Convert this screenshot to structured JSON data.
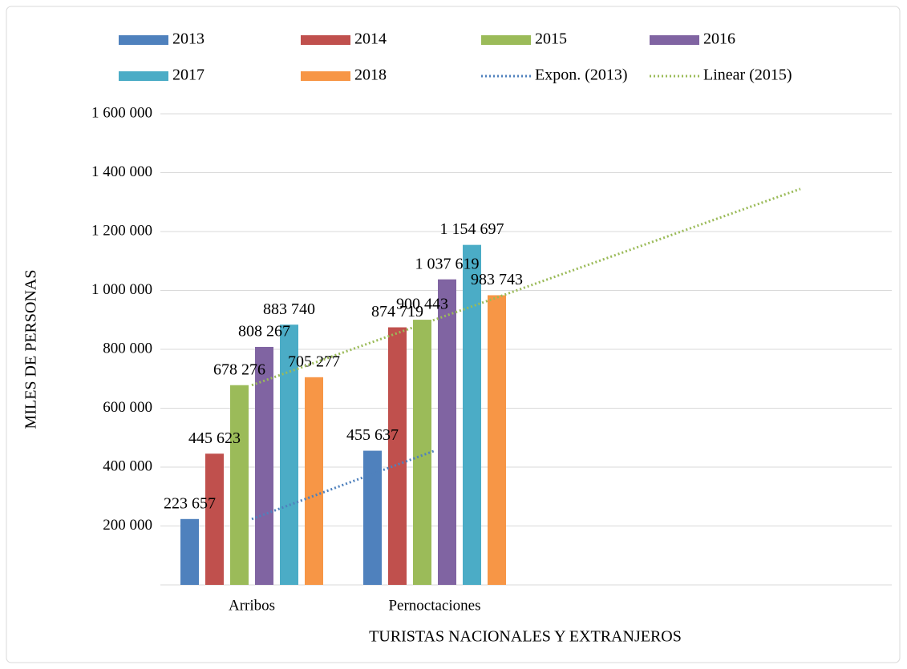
{
  "chart_data": {
    "type": "bar",
    "x_label": "TURISTAS NACIONALES Y EXTRANJEROS",
    "y_label": "MILES DE PERSONAS",
    "categories": [
      "Arribos",
      "Pernoctaciones",
      null,
      null
    ],
    "ylim": [
      0,
      1600000
    ],
    "yticks": [
      {
        "value": 200000,
        "label": "200 000"
      },
      {
        "value": 400000,
        "label": "400 000"
      },
      {
        "value": 600000,
        "label": "600 000"
      },
      {
        "value": 800000,
        "label": "800 000"
      },
      {
        "value": 1000000,
        "label": "1 000 000"
      },
      {
        "value": 1200000,
        "label": "1 200 000"
      },
      {
        "value": 1400000,
        "label": "1 400 000"
      },
      {
        "value": 1600000,
        "label": "1 600 000"
      }
    ],
    "grid": true,
    "legend": "top",
    "series": [
      {
        "name": "2013",
        "color": "#4f81bd",
        "values": [
          223657,
          455637,
          null,
          null
        ],
        "value_labels": [
          "223 657",
          "455 637",
          null,
          null
        ]
      },
      {
        "name": "2014",
        "color": "#c0504d",
        "values": [
          445623,
          874719,
          null,
          null
        ],
        "value_labels": [
          "445 623",
          "874 719",
          null,
          null
        ]
      },
      {
        "name": "2015",
        "color": "#9bbb59",
        "values": [
          678276,
          900443,
          null,
          null
        ],
        "value_labels": [
          "678 276",
          "900 443",
          null,
          null
        ]
      },
      {
        "name": "2016",
        "color": "#8064a2",
        "values": [
          808267,
          1037619,
          null,
          null
        ],
        "value_labels": [
          "808 267",
          "1 037 619",
          null,
          null
        ]
      },
      {
        "name": "2017",
        "color": "#4bacc6",
        "values": [
          883740,
          1154697,
          null,
          null
        ],
        "value_labels": [
          "883 740",
          "1 154 697",
          null,
          null
        ]
      },
      {
        "name": "2018",
        "color": "#f79646",
        "values": [
          705277,
          983743,
          null,
          null
        ],
        "value_labels": [
          "705 277",
          "983 743",
          null,
          null
        ]
      },
      {
        "name": "Expon. (2013)",
        "type": "line",
        "dash": "dotted",
        "color": "#4f81bd",
        "values": [
          223657,
          455637,
          null,
          null
        ]
      },
      {
        "name": "Linear (2015)",
        "type": "line",
        "dash": "dotted",
        "color": "#9bbb59",
        "values": [
          678276,
          900443,
          1122610,
          1344777
        ]
      }
    ]
  }
}
